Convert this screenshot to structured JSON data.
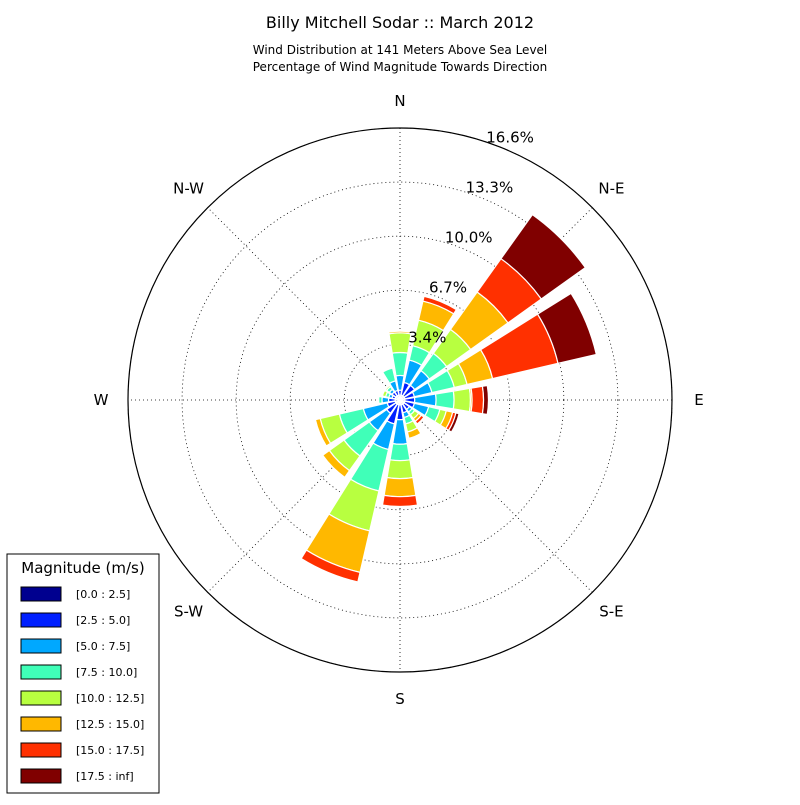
{
  "chart_data": {
    "type": "windrose",
    "title": "Billy Mitchell Sodar :: March 2012",
    "subtitle_lines": [
      "Wind Distribution at 141 Meters Above Sea Level",
      "Percentage of Wind Magnitude Towards Direction"
    ],
    "radial_tick_labels": [
      "3.4%",
      "6.7%",
      "10.0%",
      "13.3%",
      "16.6%"
    ],
    "radial_ticks": [
      3.4,
      6.7,
      10.0,
      13.3,
      16.6
    ],
    "rmax": 16.6,
    "compass_labels": [
      {
        "name": "N",
        "angle": 0
      },
      {
        "name": "N-E",
        "angle": 45
      },
      {
        "name": "E",
        "angle": 90
      },
      {
        "name": "S-E",
        "angle": 135
      },
      {
        "name": "S",
        "angle": 180
      },
      {
        "name": "S-W",
        "angle": 225
      },
      {
        "name": "W",
        "angle": 270
      },
      {
        "name": "N-W",
        "angle": 315
      }
    ],
    "legend": {
      "title": "Magnitude (m/s)",
      "placement": "lower-left",
      "bins": [
        {
          "label": "[0.0 : 2.5]",
          "color": "#00008f"
        },
        {
          "label": "[2.5 : 5.0]",
          "color": "#0020ff"
        },
        {
          "label": "[5.0 : 7.5]",
          "color": "#00a8ff"
        },
        {
          "label": "[7.5 : 10.0]",
          "color": "#40ffb8"
        },
        {
          "label": "[10.0 : 12.5]",
          "color": "#b8ff40"
        },
        {
          "label": "[12.5 : 15.0]",
          "color": "#ffb800"
        },
        {
          "label": "[15.0 : 17.5]",
          "color": "#ff3000"
        },
        {
          "label": "[17.5 : inf]",
          "color": "#800000"
        }
      ]
    },
    "sector_width_deg": 22.5,
    "sectors": [
      {
        "direction": 0,
        "values": [
          0.3,
          0.3,
          0.9,
          1.4,
          1.2,
          0.1,
          0,
          0
        ]
      },
      {
        "direction": 22.5,
        "values": [
          0.3,
          0.8,
          1.4,
          0.9,
          1.6,
          1.2,
          0.3,
          0
        ]
      },
      {
        "direction": 45,
        "values": [
          0.3,
          0.8,
          1.1,
          1.3,
          1.8,
          2.8,
          2.5,
          3.3
        ]
      },
      {
        "direction": 67.5,
        "values": [
          0.3,
          0.6,
          1.1,
          1.4,
          0.8,
          1.6,
          4.1,
          2.4
        ]
      },
      {
        "direction": 90,
        "values": [
          0.3,
          0.6,
          1.3,
          1.1,
          1.0,
          0.1,
          0.7,
          0.3
        ]
      },
      {
        "direction": 112.5,
        "values": [
          0.3,
          0.6,
          0.9,
          0.7,
          0.4,
          0.4,
          0.2,
          0.2
        ]
      },
      {
        "direction": 135,
        "values": [
          0.3,
          0.4,
          0.2,
          0.2,
          0.3,
          0.2,
          0.2,
          0
        ]
      },
      {
        "direction": 157.5,
        "values": [
          0.3,
          0.5,
          0.3,
          0.4,
          0.5,
          0.4,
          0,
          0
        ]
      },
      {
        "direction": 180,
        "values": [
          0.3,
          0.9,
          1.5,
          1.0,
          1.1,
          1.1,
          0.6,
          0
        ]
      },
      {
        "direction": 202.5,
        "values": [
          0.3,
          1.2,
          1.6,
          2.6,
          2.5,
          2.6,
          0.6,
          0
        ]
      },
      {
        "direction": 225,
        "values": [
          0.3,
          0.7,
          1.3,
          1.9,
          1.1,
          0.5,
          0,
          0
        ]
      },
      {
        "direction": 247.5,
        "values": [
          0.3,
          0.5,
          1.5,
          1.5,
          1.2,
          0.3,
          0,
          0
        ]
      },
      {
        "direction": 270,
        "values": [
          0.3,
          0.4,
          0.4,
          0.2,
          0,
          0,
          0,
          0
        ]
      },
      {
        "direction": 292.5,
        "values": [
          0.3,
          0.2,
          0.2,
          0.2,
          0.2,
          0,
          0,
          0
        ]
      },
      {
        "direction": 315,
        "values": [
          0.3,
          0.3,
          0.2,
          0.2,
          0.1,
          0,
          0,
          0
        ]
      },
      {
        "direction": 337.5,
        "values": [
          0.3,
          0.3,
          0.6,
          0.8,
          0,
          0,
          0,
          0
        ]
      }
    ]
  }
}
